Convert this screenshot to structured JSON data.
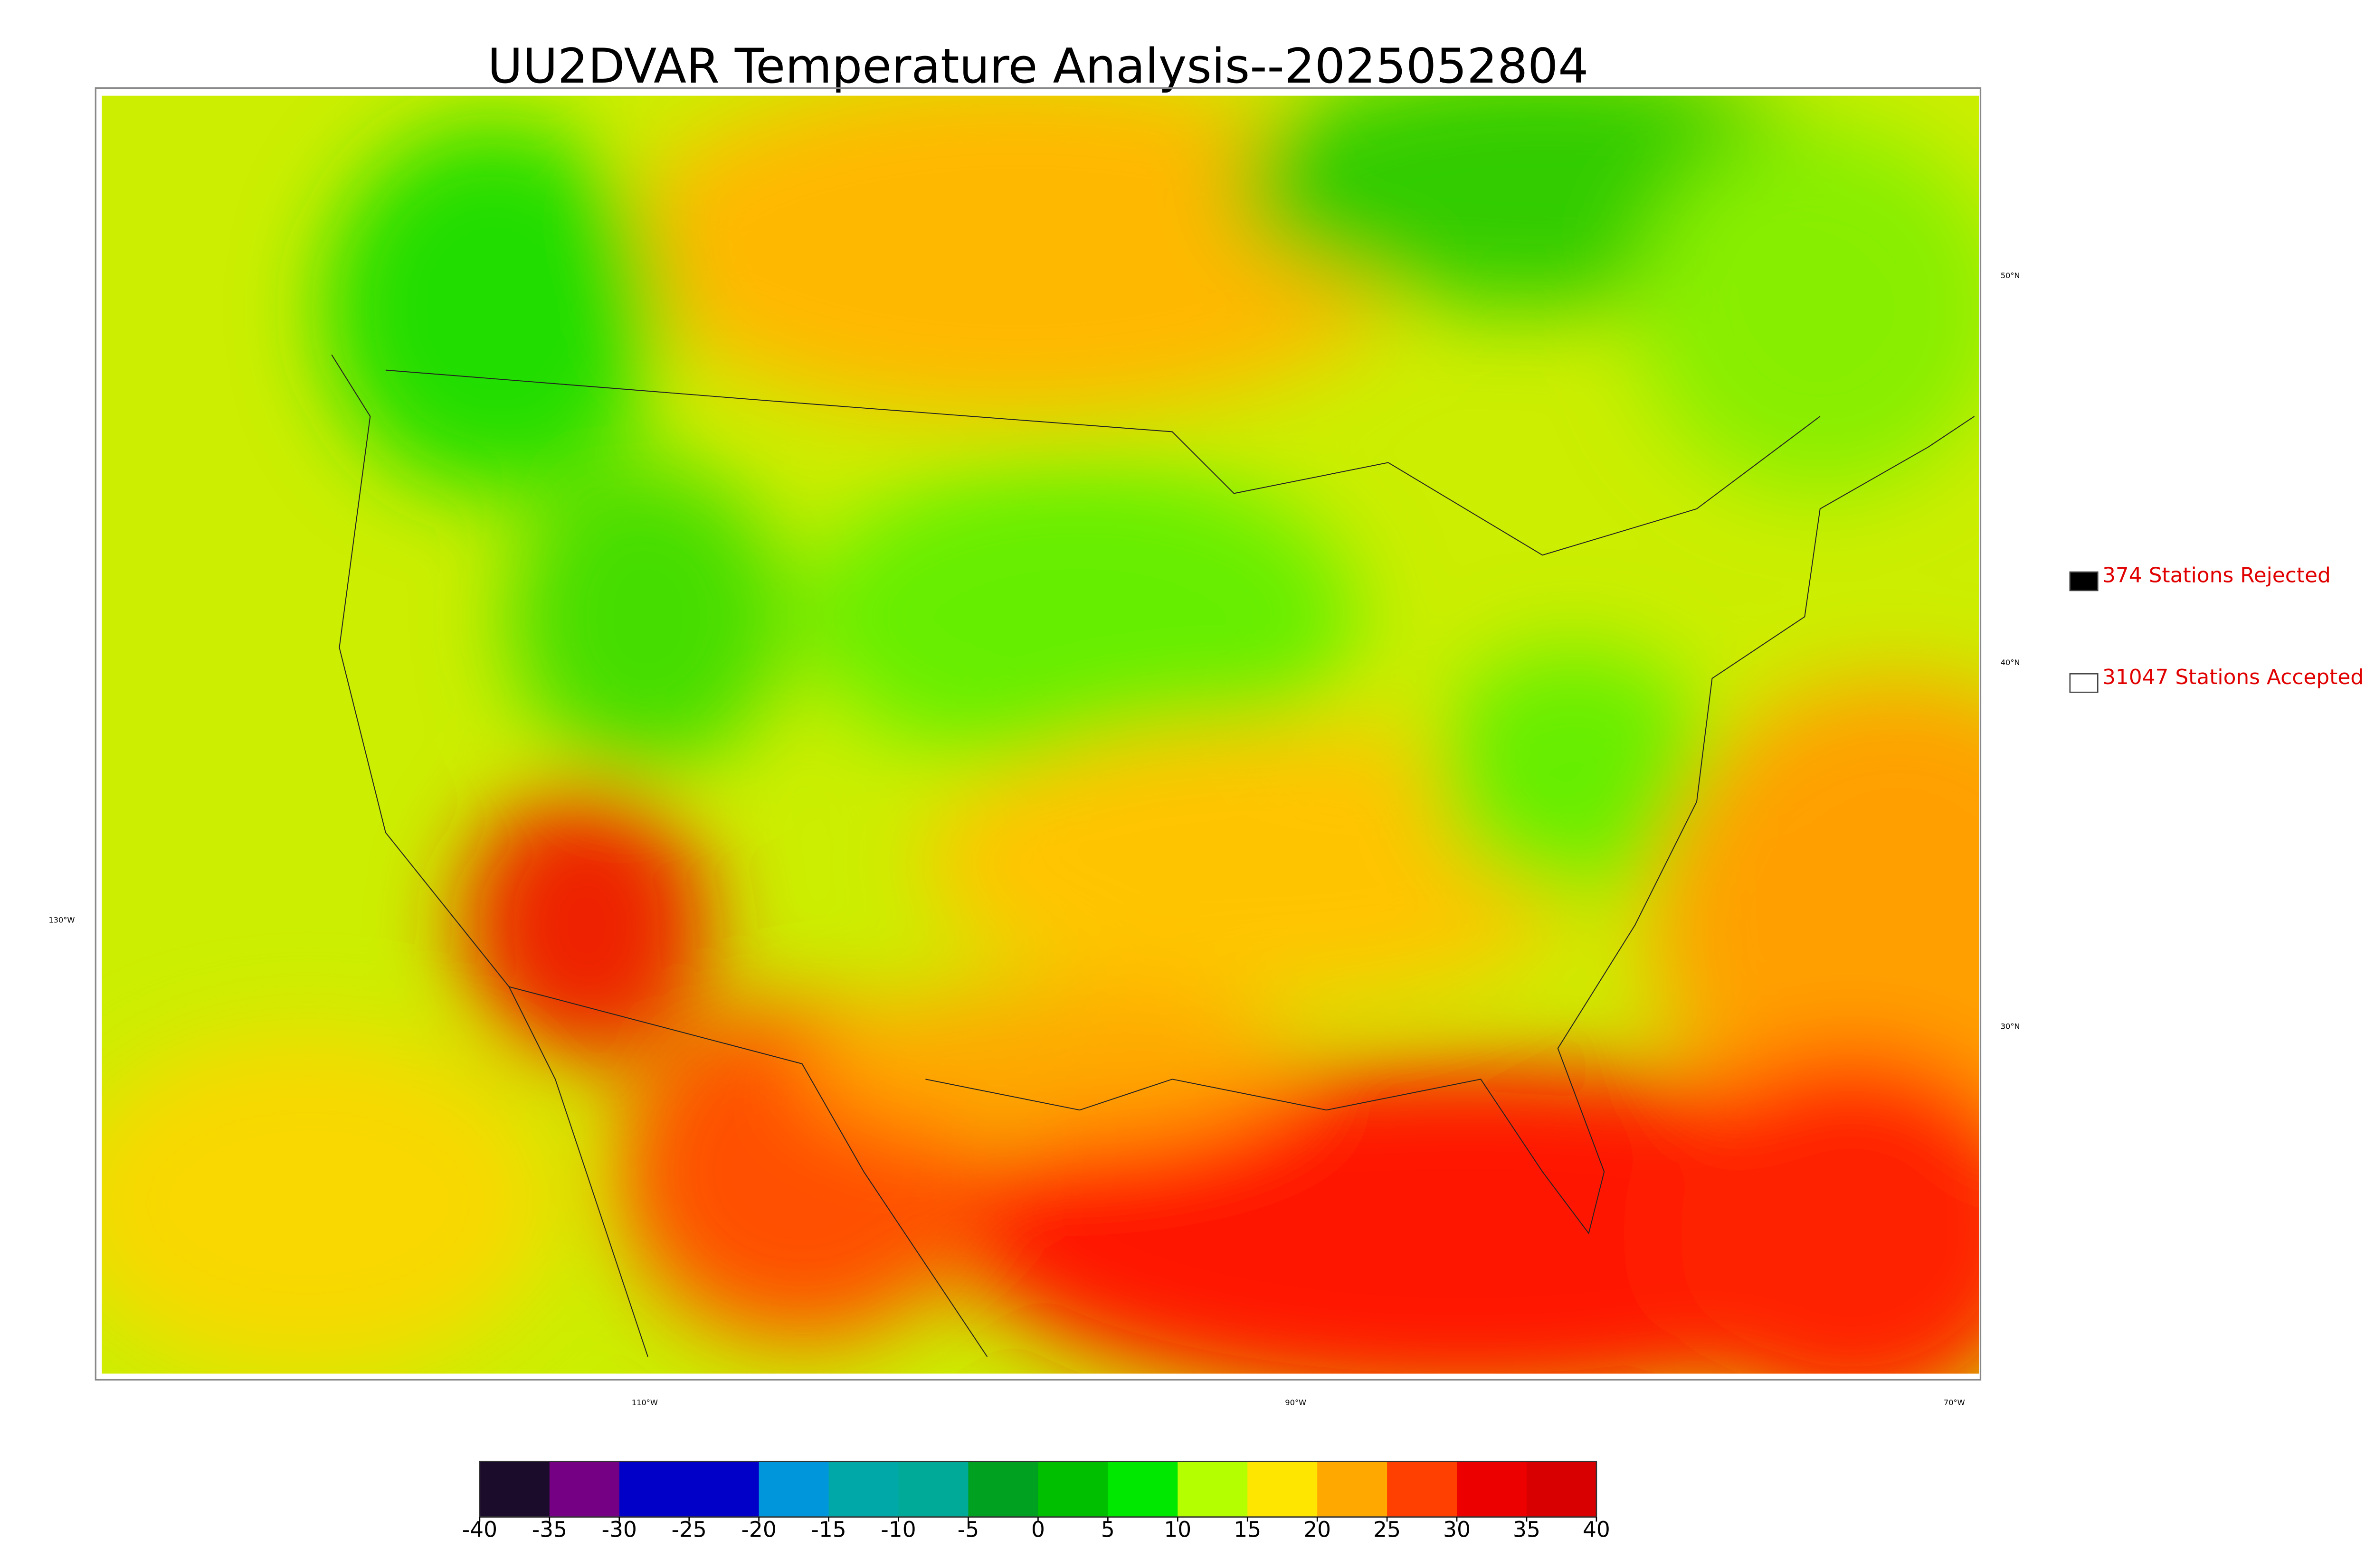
{
  "map": {
    "title": "UU2DVAR Temperature Analysis--2025052804",
    "legend": [
      {
        "label": "374 Stations Rejected",
        "color": "#000000"
      },
      {
        "label": "31047 Stations Accepted",
        "color": "#ffffff"
      }
    ],
    "lat_labels": [
      "50°N",
      "40°N",
      "30°N"
    ],
    "lon_labels": [
      "130°W",
      "110°W",
      "90°W",
      "70°W"
    ],
    "colorbar": {
      "ticks": [
        -40,
        -35,
        -30,
        -25,
        -20,
        -15,
        -10,
        -5,
        0,
        5,
        10,
        15,
        20,
        25,
        30,
        35,
        40
      ],
      "colors": [
        "#1c0c2c",
        "#760084",
        "#0000c8",
        "#0000c8",
        "#0096dc",
        "#00a8a8",
        "#00aa98",
        "#00a020",
        "#00bf00",
        "#00e800",
        "#b4ff00",
        "#ffe600",
        "#ffa800",
        "#ff4000",
        "#ec0000",
        "#d80000"
      ]
    }
  }
}
